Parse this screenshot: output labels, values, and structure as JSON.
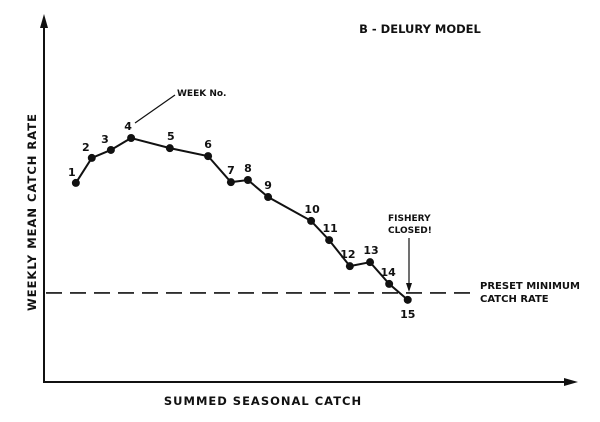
{
  "chart_data": {
    "type": "line",
    "title": "B - DELURY MODEL",
    "xlabel": "SUMMED SEASONAL CATCH",
    "ylabel": "WEEKLY MEAN CATCH RATE",
    "xlim": [
      0,
      100
    ],
    "ylim": [
      0,
      100
    ],
    "grid": false,
    "axis_ticks": false,
    "point_labels": [
      "1",
      "2",
      "3",
      "4",
      "5",
      "6",
      "7",
      "8",
      "9",
      "10",
      "11",
      "12",
      "13",
      "14",
      "15"
    ],
    "x": [
      6.0,
      9.0,
      12.6,
      16.4,
      23.7,
      30.9,
      35.2,
      38.4,
      42.2,
      50.3,
      53.7,
      57.6,
      61.4,
      65.0,
      68.5
    ],
    "y": [
      55.0,
      61.9,
      64.1,
      67.4,
      64.6,
      62.4,
      55.2,
      55.8,
      51.1,
      44.5,
      39.2,
      32.0,
      33.1,
      27.1,
      22.7
    ],
    "threshold": {
      "y": 24.6,
      "label_line1": "PRESET MINIMUM",
      "label_line2": "CATCH RATE",
      "style": "dashed"
    },
    "annotations": {
      "week_label": "WEEK No.",
      "closed_line1": "FISHERY",
      "closed_line2": "CLOSED!"
    },
    "colors": {
      "ink": "#111111",
      "background": "#ffffff"
    }
  }
}
